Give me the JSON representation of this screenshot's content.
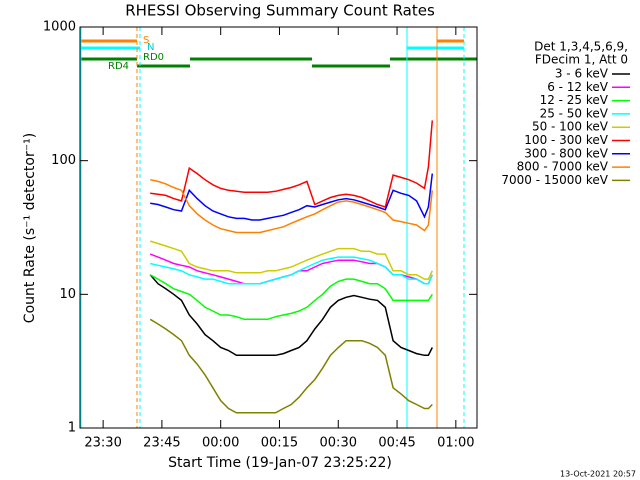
{
  "chart_data": {
    "type": "line",
    "title": "RHESSI Observing Summary Count Rates",
    "x_label": "Start Time (19-Jan-07 23:25:22)",
    "y_label": "Count Rate (s⁻¹ detector⁻¹)",
    "legend_header": [
      "Det 1,3,4,5,6,9,",
      "FDecim 1, Att 0"
    ],
    "footer": "13-Oct-2021 20:57",
    "state_labels": [
      "S",
      "N",
      "RD0",
      "RD4"
    ],
    "yscale": "log",
    "ylim": [
      1,
      1000
    ],
    "yticks": [
      1,
      10,
      100,
      1000
    ],
    "xlim": [
      "23:24:06",
      "01:05:24"
    ],
    "xticks": [
      "23:30",
      "23:45",
      "00:00",
      "00:15",
      "00:30",
      "00:45",
      "01:00"
    ],
    "x": [
      "23:42",
      "23:44",
      "23:46",
      "23:48",
      "23:50",
      "23:52",
      "23:54",
      "23:56",
      "23:58",
      "00:00",
      "00:02",
      "00:04",
      "00:06",
      "00:08",
      "00:10",
      "00:12",
      "00:14",
      "00:16",
      "00:18",
      "00:20",
      "00:22",
      "00:24",
      "00:26",
      "00:28",
      "00:30",
      "00:32",
      "00:34",
      "00:36",
      "00:38",
      "00:40",
      "00:42",
      "00:44",
      "00:46",
      "00:48",
      "00:50",
      "00:52",
      "00:53",
      "00:54"
    ],
    "series": [
      {
        "name": "3 - 6 keV",
        "color": "#000000",
        "values": [
          14,
          12,
          11,
          10,
          9,
          7,
          6,
          5,
          4.5,
          4,
          3.8,
          3.5,
          3.5,
          3.5,
          3.5,
          3.5,
          3.5,
          3.6,
          3.8,
          4,
          4.5,
          5.5,
          6.5,
          8,
          9,
          9.5,
          9.8,
          9.5,
          9.2,
          9,
          8,
          4.5,
          4,
          3.8,
          3.6,
          3.5,
          3.5,
          4
        ]
      },
      {
        "name": "6 - 12 keV",
        "color": "#ff00ff",
        "values": [
          20,
          19,
          18,
          17,
          16.5,
          16,
          15,
          14.5,
          14,
          13.5,
          13,
          12.5,
          12,
          12,
          12,
          12.5,
          13,
          13.5,
          14,
          15,
          15,
          16,
          17,
          17.5,
          18,
          18,
          18,
          17.5,
          17,
          17,
          16,
          14,
          14,
          13.5,
          13,
          12,
          12,
          14
        ]
      },
      {
        "name": "12 - 25 keV",
        "color": "#00ff00",
        "values": [
          14,
          13,
          12,
          11,
          10.5,
          10,
          9,
          8,
          7.5,
          7,
          7,
          6.8,
          6.5,
          6.5,
          6.5,
          6.5,
          6.8,
          7,
          7.2,
          7.5,
          8,
          9,
          10,
          11.5,
          12.5,
          13,
          13,
          12.5,
          12,
          12,
          11,
          9,
          9,
          9,
          9,
          9,
          9,
          10
        ]
      },
      {
        "name": "25 - 50 keV",
        "color": "#00ffff",
        "values": [
          17,
          16.5,
          16,
          15.5,
          15,
          14,
          13.5,
          13,
          13,
          12.5,
          12,
          12,
          12,
          12,
          12,
          12.5,
          13,
          13.5,
          14,
          15,
          16,
          17,
          18,
          18.5,
          19,
          19,
          19,
          18.5,
          18,
          17,
          16,
          14,
          14,
          13,
          13,
          12,
          12,
          14
        ]
      },
      {
        "name": "50 - 100 keV",
        "color": "#cccc00",
        "values": [
          25,
          24,
          23,
          22,
          21,
          17,
          16,
          15.5,
          15,
          15,
          15,
          14.5,
          14.5,
          14.5,
          14.5,
          15,
          15,
          15.5,
          16,
          17,
          18,
          19,
          20,
          21,
          22,
          22,
          22,
          21,
          21,
          20,
          20,
          15,
          15,
          14,
          14,
          13,
          13,
          15
        ]
      },
      {
        "name": "100 - 300 keV",
        "color": "#ff0000",
        "values": [
          57,
          56,
          55,
          52,
          50,
          88,
          80,
          72,
          66,
          62,
          60,
          59,
          58,
          58,
          58,
          58,
          59,
          61,
          63,
          66,
          70,
          47,
          50,
          53,
          55,
          56,
          55,
          53,
          50,
          47,
          45,
          78,
          75,
          72,
          68,
          62,
          90,
          200
        ]
      },
      {
        "name": "300 - 800 keV",
        "color": "#0000ff",
        "values": [
          48,
          47,
          45,
          43,
          42,
          60,
          52,
          46,
          42,
          40,
          38,
          37,
          37,
          36,
          36,
          37,
          38,
          39,
          41,
          43,
          46,
          45,
          47,
          49,
          51,
          52,
          51,
          49,
          47,
          45,
          43,
          60,
          57,
          55,
          50,
          38,
          45,
          80
        ]
      },
      {
        "name": "800 - 7000 keV",
        "color": "#ff8000",
        "values": [
          72,
          70,
          67,
          63,
          60,
          46,
          40,
          36,
          33,
          31,
          30,
          29,
          29,
          29,
          29,
          30,
          31,
          32,
          34,
          36,
          38,
          40,
          43,
          46,
          49,
          50,
          49,
          47,
          45,
          43,
          41,
          36,
          35,
          34,
          33,
          30,
          33,
          60
        ]
      },
      {
        "name": "7000 - 15000 keV",
        "color": "#808000",
        "values": [
          6.5,
          6,
          5.5,
          5,
          4.5,
          3.5,
          3,
          2.5,
          2,
          1.6,
          1.4,
          1.3,
          1.3,
          1.3,
          1.3,
          1.3,
          1.3,
          1.4,
          1.5,
          1.7,
          2,
          2.3,
          2.8,
          3.5,
          4,
          4.5,
          4.5,
          4.5,
          4.3,
          4,
          3.5,
          2,
          1.8,
          1.6,
          1.5,
          1.4,
          1.4,
          1.5
        ]
      }
    ]
  }
}
